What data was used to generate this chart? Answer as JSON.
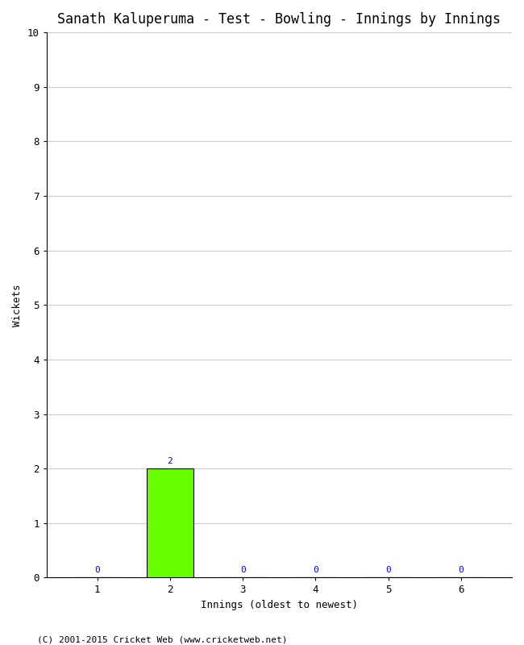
{
  "title": "Sanath Kaluperuma - Test - Bowling - Innings by Innings",
  "xlabel": "Innings (oldest to newest)",
  "ylabel": "Wickets",
  "categories": [
    1,
    2,
    3,
    4,
    5,
    6
  ],
  "values": [
    0,
    2,
    0,
    0,
    0,
    0
  ],
  "bar_color": "#66ff00",
  "bar_edge_color": "#000000",
  "annotation_color": "#0000cc",
  "ylim": [
    0,
    10
  ],
  "yticks": [
    0,
    1,
    2,
    3,
    4,
    5,
    6,
    7,
    8,
    9,
    10
  ],
  "xticks": [
    1,
    2,
    3,
    4,
    5,
    6
  ],
  "background_color": "#ffffff",
  "grid_color": "#cccccc",
  "title_fontsize": 12,
  "axis_label_fontsize": 9,
  "tick_fontsize": 9,
  "annotation_fontsize": 8,
  "copyright_text": "(C) 2001-2015 Cricket Web (www.cricketweb.net)",
  "copyright_fontsize": 8,
  "copyright_color": "#000000",
  "bar_width": 0.65
}
